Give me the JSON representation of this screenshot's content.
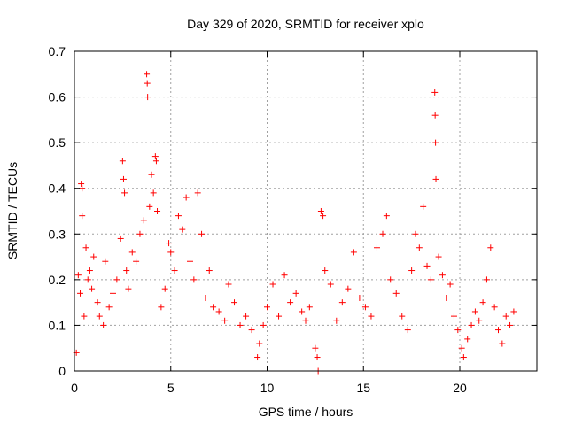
{
  "chart_data": {
    "type": "scatter",
    "title": "Day 329 of 2020, SRMTID for receiver xplo",
    "xlabel": "GPS time / hours",
    "ylabel": "SRMTID / TECUs",
    "xlim": [
      0,
      24
    ],
    "ylim": [
      0,
      0.7
    ],
    "x_ticks": [
      0,
      5,
      10,
      15,
      20
    ],
    "y_ticks": [
      0,
      0.1,
      0.2,
      0.3,
      0.4,
      0.5,
      0.6,
      0.7
    ],
    "x_tick_labels": [
      "0",
      "5",
      "10",
      "15",
      "20"
    ],
    "y_tick_labels": [
      "0",
      "0.1",
      "0.2",
      "0.3",
      "0.4",
      "0.5",
      "0.6",
      "0.7"
    ],
    "grid": true,
    "marker": "+",
    "color": "#ff0000",
    "series": [
      {
        "name": "SRMTID",
        "points": [
          [
            0.1,
            0.04
          ],
          [
            0.2,
            0.21
          ],
          [
            0.3,
            0.17
          ],
          [
            0.35,
            0.41
          ],
          [
            0.4,
            0.4
          ],
          [
            0.4,
            0.34
          ],
          [
            0.5,
            0.12
          ],
          [
            0.6,
            0.27
          ],
          [
            0.7,
            0.2
          ],
          [
            0.8,
            0.22
          ],
          [
            0.9,
            0.18
          ],
          [
            1.0,
            0.25
          ],
          [
            1.2,
            0.15
          ],
          [
            1.3,
            0.12
          ],
          [
            1.5,
            0.1
          ],
          [
            1.6,
            0.24
          ],
          [
            1.8,
            0.14
          ],
          [
            2.0,
            0.17
          ],
          [
            2.2,
            0.2
          ],
          [
            2.4,
            0.29
          ],
          [
            2.5,
            0.46
          ],
          [
            2.55,
            0.42
          ],
          [
            2.6,
            0.39
          ],
          [
            2.7,
            0.22
          ],
          [
            2.8,
            0.18
          ],
          [
            3.0,
            0.26
          ],
          [
            3.2,
            0.24
          ],
          [
            3.4,
            0.3
          ],
          [
            3.6,
            0.33
          ],
          [
            3.75,
            0.65
          ],
          [
            3.78,
            0.63
          ],
          [
            3.8,
            0.6
          ],
          [
            3.9,
            0.36
          ],
          [
            4.0,
            0.43
          ],
          [
            4.1,
            0.39
          ],
          [
            4.2,
            0.47
          ],
          [
            4.25,
            0.46
          ],
          [
            4.3,
            0.35
          ],
          [
            4.5,
            0.14
          ],
          [
            4.7,
            0.18
          ],
          [
            4.9,
            0.28
          ],
          [
            5.0,
            0.26
          ],
          [
            5.2,
            0.22
          ],
          [
            5.4,
            0.34
          ],
          [
            5.6,
            0.31
          ],
          [
            5.8,
            0.38
          ],
          [
            6.0,
            0.24
          ],
          [
            6.2,
            0.2
          ],
          [
            6.4,
            0.39
          ],
          [
            6.6,
            0.3
          ],
          [
            6.8,
            0.16
          ],
          [
            7.0,
            0.22
          ],
          [
            7.2,
            0.14
          ],
          [
            7.5,
            0.13
          ],
          [
            7.8,
            0.11
          ],
          [
            8.0,
            0.19
          ],
          [
            8.3,
            0.15
          ],
          [
            8.6,
            0.1
          ],
          [
            8.9,
            0.12
          ],
          [
            9.2,
            0.09
          ],
          [
            9.5,
            0.03
          ],
          [
            9.6,
            0.06
          ],
          [
            9.8,
            0.1
          ],
          [
            10.0,
            0.14
          ],
          [
            10.3,
            0.19
          ],
          [
            10.6,
            0.12
          ],
          [
            10.9,
            0.21
          ],
          [
            11.2,
            0.15
          ],
          [
            11.5,
            0.17
          ],
          [
            11.8,
            0.13
          ],
          [
            12.0,
            0.11
          ],
          [
            12.2,
            0.14
          ],
          [
            12.5,
            0.05
          ],
          [
            12.6,
            0.03
          ],
          [
            12.65,
            0.0
          ],
          [
            12.8,
            0.35
          ],
          [
            12.9,
            0.34
          ],
          [
            13.0,
            0.22
          ],
          [
            13.3,
            0.19
          ],
          [
            13.6,
            0.11
          ],
          [
            13.9,
            0.15
          ],
          [
            14.2,
            0.18
          ],
          [
            14.5,
            0.26
          ],
          [
            14.8,
            0.16
          ],
          [
            15.1,
            0.14
          ],
          [
            15.4,
            0.12
          ],
          [
            15.7,
            0.27
          ],
          [
            16.0,
            0.3
          ],
          [
            16.2,
            0.34
          ],
          [
            16.4,
            0.2
          ],
          [
            16.7,
            0.17
          ],
          [
            17.0,
            0.12
          ],
          [
            17.3,
            0.09
          ],
          [
            17.5,
            0.22
          ],
          [
            17.7,
            0.3
          ],
          [
            17.9,
            0.27
          ],
          [
            18.1,
            0.36
          ],
          [
            18.3,
            0.23
          ],
          [
            18.5,
            0.2
          ],
          [
            18.7,
            0.61
          ],
          [
            18.72,
            0.56
          ],
          [
            18.74,
            0.5
          ],
          [
            18.76,
            0.42
          ],
          [
            18.9,
            0.25
          ],
          [
            19.1,
            0.21
          ],
          [
            19.3,
            0.16
          ],
          [
            19.5,
            0.19
          ],
          [
            19.7,
            0.12
          ],
          [
            19.9,
            0.09
          ],
          [
            20.1,
            0.05
          ],
          [
            20.2,
            0.03
          ],
          [
            20.4,
            0.07
          ],
          [
            20.6,
            0.1
          ],
          [
            20.8,
            0.13
          ],
          [
            21.0,
            0.11
          ],
          [
            21.2,
            0.15
          ],
          [
            21.4,
            0.2
          ],
          [
            21.6,
            0.27
          ],
          [
            21.8,
            0.14
          ],
          [
            22.0,
            0.09
          ],
          [
            22.2,
            0.06
          ],
          [
            22.4,
            0.12
          ],
          [
            22.6,
            0.1
          ],
          [
            22.8,
            0.13
          ]
        ]
      }
    ]
  }
}
